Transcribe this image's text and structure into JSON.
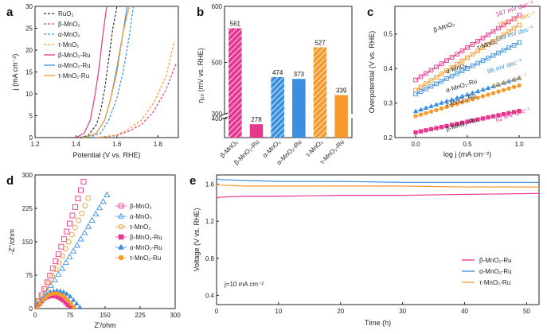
{
  "colors": {
    "pink": "#e8368f",
    "blue": "#3a8fe0",
    "orange": "#f59a2d",
    "ruo2": "#333333"
  },
  "panel_labels": [
    "a",
    "b",
    "c",
    "d",
    "e"
  ],
  "chart_data": [
    {
      "panel": "a",
      "type": "line",
      "xlabel": "Potential (V vs. RHE)",
      "ylabel": "j (mA cm⁻²)",
      "xlim": [
        1.2,
        1.9
      ],
      "ylim": [
        0,
        30
      ],
      "xticks": [
        "1.2",
        "1.4",
        "1.6",
        "1.8"
      ],
      "yticks": [
        "0",
        "5",
        "10",
        "15",
        "20",
        "25",
        "30"
      ],
      "legend_position": "top-left",
      "series": [
        {
          "name": "RuO₂",
          "color": "#333333",
          "dash": true,
          "x": [
            1.42,
            1.46,
            1.5,
            1.52,
            1.54,
            1.56,
            1.58,
            1.6
          ],
          "y": [
            0,
            0.5,
            3,
            6,
            11,
            18,
            25,
            30
          ]
        },
        {
          "name": "β-MnO₂",
          "color": "#e8368f",
          "dash": true,
          "x": [
            1.5,
            1.6,
            1.66,
            1.72,
            1.78,
            1.84,
            1.89
          ],
          "y": [
            0,
            0.5,
            1.5,
            3,
            6,
            11,
            17
          ]
        },
        {
          "name": "α-MnO₂",
          "color": "#3a8fe0",
          "dash": true,
          "x": [
            1.46,
            1.52,
            1.56,
            1.6,
            1.63,
            1.66,
            1.68
          ],
          "y": [
            0,
            1,
            4,
            9,
            15,
            23,
            30
          ]
        },
        {
          "name": "τ-MnO₂",
          "color": "#f59a2d",
          "dash": true,
          "x": [
            1.5,
            1.6,
            1.66,
            1.72,
            1.78,
            1.84,
            1.88
          ],
          "y": [
            0,
            0.6,
            2,
            4,
            8,
            14,
            22
          ]
        },
        {
          "name": "β-MnO₂-Ru",
          "color": "#e8368f",
          "dash": false,
          "x": [
            1.4,
            1.44,
            1.47,
            1.49,
            1.51,
            1.53,
            1.55
          ],
          "y": [
            0,
            1,
            4,
            9,
            15,
            23,
            30
          ]
        },
        {
          "name": "α-MnO₂-Ru",
          "color": "#3a8fe0",
          "dash": false,
          "x": [
            1.44,
            1.5,
            1.54,
            1.57,
            1.6,
            1.63,
            1.65
          ],
          "y": [
            0,
            1,
            4,
            9,
            16,
            24,
            30
          ]
        },
        {
          "name": "τ-MnO₂-Ru",
          "color": "#f59a2d",
          "dash": false,
          "x": [
            1.44,
            1.5,
            1.54,
            1.57,
            1.6,
            1.63,
            1.66
          ],
          "y": [
            0,
            1,
            4,
            9,
            15,
            24,
            30
          ]
        }
      ]
    },
    {
      "panel": "b",
      "type": "bar",
      "ylabel": "η₁₀ (mV vs. RHE)",
      "ylim": [
        250,
        600
      ],
      "axis_break": [
        300,
        400
      ],
      "yticks": [
        "300",
        "400",
        "500",
        "600"
      ],
      "categories": [
        "β-MnO₂",
        "β-MnO₂-Ru",
        "α-MnO₂",
        "α-MnO₂-Ru",
        "τ-MnO₂",
        "τ-MnO₂-Ru"
      ],
      "values": [
        561,
        278,
        474,
        373,
        527,
        339
      ],
      "value_labels": [
        "561",
        "278",
        "474",
        "373",
        "527",
        "339"
      ],
      "hatched": [
        true,
        false,
        true,
        false,
        true,
        false
      ],
      "bar_colors": [
        "#e8368f",
        "#e8368f",
        "#3a8fe0",
        "#3a8fe0",
        "#f59a2d",
        "#f59a2d"
      ]
    },
    {
      "panel": "c",
      "type": "scatter",
      "xlabel": "log j (mA cm⁻²)",
      "ylabel": "Overpotential (V vs. RHE)",
      "xlim": [
        -0.2,
        1.2
      ],
      "ylim": [
        0.2,
        0.58
      ],
      "xticks": [
        "0.0",
        "0.5",
        "1.0"
      ],
      "yticks": [
        "0.2",
        "0.3",
        "0.4",
        "0.5"
      ],
      "series": [
        {
          "name": "β-MnO₂",
          "color": "#e8368f",
          "hollow": true,
          "slope": 0.187,
          "intercept": 0.367,
          "tafel": "187 mV dec⁻¹"
        },
        {
          "name": "τ-MnO₂",
          "color": "#f59a2d",
          "hollow": true,
          "slope": 0.189,
          "intercept": 0.337,
          "tafel": "189 mV dec⁻¹"
        },
        {
          "name": "α-MnO₂",
          "color": "#3a8fe0",
          "hollow": true,
          "slope": 0.149,
          "intercept": 0.326,
          "tafel": "149 mV dec⁻¹"
        },
        {
          "name": "α-MnO₂-Ru",
          "color": "#3a8fe0",
          "hollow": false,
          "slope": 0.096,
          "intercept": 0.276,
          "tafel": "96 mV dec⁻¹"
        },
        {
          "name": "τ-MnO₂-Ru",
          "color": "#f59a2d",
          "hollow": false,
          "slope": 0.089,
          "intercept": 0.262,
          "tafel": "89 mV dec⁻¹"
        },
        {
          "name": "β-MnO₂-Ru",
          "color": "#e8368f",
          "hollow": false,
          "slope": 0.062,
          "intercept": 0.215,
          "tafel": "62 mV dec⁻¹"
        }
      ]
    },
    {
      "panel": "d",
      "type": "scatter",
      "xlabel": "Z'/ohm",
      "ylabel": "-Z''/ohm",
      "xlim": [
        0,
        300
      ],
      "ylim": [
        0,
        300
      ],
      "xticks": [
        "0",
        "75",
        "150",
        "225",
        "300"
      ],
      "yticks": [
        "0",
        "75",
        "150",
        "225",
        "300"
      ],
      "legend_position": "right",
      "series": [
        {
          "name": "β-MnO₂",
          "color": "#e8368f",
          "hollow": true,
          "marker": "square",
          "x": [
            2,
            8,
            14,
            20,
            26,
            32,
            38,
            44,
            50,
            56,
            62,
            68,
            74,
            80,
            86,
            92,
            98,
            104
          ],
          "y": [
            5,
            17,
            30,
            44,
            59,
            74,
            90,
            106,
            122,
            139,
            156,
            173,
            191,
            209,
            228,
            247,
            266,
            285
          ]
        },
        {
          "name": "α-MnO₂",
          "color": "#3a8fe0",
          "hollow": true,
          "marker": "triangle",
          "x": [
            2,
            10,
            18,
            26,
            34,
            42,
            50,
            58,
            66,
            74,
            82,
            90,
            98,
            106,
            114,
            122,
            130,
            138,
            146,
            154
          ],
          "y": [
            3,
            15,
            27,
            39,
            52,
            64,
            77,
            90,
            103,
            116,
            129,
            142,
            156,
            170,
            184,
            198,
            212,
            226,
            240,
            255
          ]
        },
        {
          "name": "τ-MnO₂",
          "color": "#f59a2d",
          "hollow": true,
          "marker": "circle",
          "x": [
            2,
            9,
            16,
            23,
            30,
            37,
            44,
            51,
            58,
            65,
            72,
            79,
            86,
            93,
            100,
            107,
            114
          ],
          "y": [
            4,
            17,
            30,
            44,
            58,
            73,
            88,
            103,
            118,
            134,
            150,
            166,
            182,
            198,
            214,
            231,
            248
          ]
        },
        {
          "name": "β-MnO₂-Ru",
          "color": "#e8368f",
          "hollow": false,
          "marker": "square",
          "x": [
            5,
            10,
            15,
            20,
            25,
            30,
            35,
            40,
            45,
            50,
            55,
            60,
            65,
            70,
            75,
            80
          ],
          "y": [
            2,
            10,
            17,
            22,
            25,
            27,
            28,
            28,
            27,
            25,
            22,
            18,
            13,
            8,
            4,
            1
          ]
        },
        {
          "name": "α-MnO₂-Ru",
          "color": "#3a8fe0",
          "hollow": false,
          "marker": "triangle",
          "x": [
            5,
            12,
            19,
            26,
            33,
            40,
            47,
            54,
            61,
            68,
            75,
            82,
            89,
            96
          ],
          "y": [
            2,
            14,
            24,
            32,
            37,
            39,
            40,
            39,
            37,
            33,
            27,
            19,
            11,
            3
          ]
        },
        {
          "name": "τ-MnO₂-Ru",
          "color": "#f59a2d",
          "hollow": false,
          "marker": "circle",
          "x": [
            5,
            11,
            17,
            23,
            29,
            35,
            41,
            47,
            53,
            59,
            65,
            71,
            77,
            83
          ],
          "y": [
            2,
            11,
            19,
            25,
            30,
            33,
            34,
            34,
            32,
            29,
            24,
            18,
            11,
            4
          ]
        }
      ]
    },
    {
      "panel": "e",
      "type": "line",
      "xlabel": "Time (h)",
      "ylabel": "Voltage (V vs. RHE)",
      "xlim": [
        0,
        52
      ],
      "ylim": [
        0.3,
        1.7
      ],
      "xticks": [
        "0",
        "10",
        "20",
        "30",
        "40",
        "50"
      ],
      "yticks": [
        "0.4",
        "0.8",
        "1.2",
        "1.6"
      ],
      "annotation": "j=10 mA cm⁻²",
      "legend_position": "bottom-right",
      "series": [
        {
          "name": "β-MnO₂-Ru",
          "color": "#e8368f",
          "x": [
            0,
            0.5,
            5,
            10,
            20,
            30,
            40,
            52
          ],
          "y": [
            1.45,
            1.46,
            1.47,
            1.47,
            1.48,
            1.48,
            1.49,
            1.5
          ]
        },
        {
          "name": "α-MnO₂-Ru",
          "color": "#3a8fe0",
          "x": [
            0,
            0.5,
            5,
            10,
            20,
            30,
            40,
            52
          ],
          "y": [
            1.66,
            1.65,
            1.64,
            1.63,
            1.63,
            1.62,
            1.62,
            1.62
          ]
        },
        {
          "name": "τ-MnO₂-Ru",
          "color": "#f59a2d",
          "x": [
            0,
            0.5,
            5,
            10,
            20,
            30,
            40,
            52
          ],
          "y": [
            1.6,
            1.59,
            1.58,
            1.58,
            1.58,
            1.58,
            1.57,
            1.57
          ]
        }
      ]
    }
  ]
}
